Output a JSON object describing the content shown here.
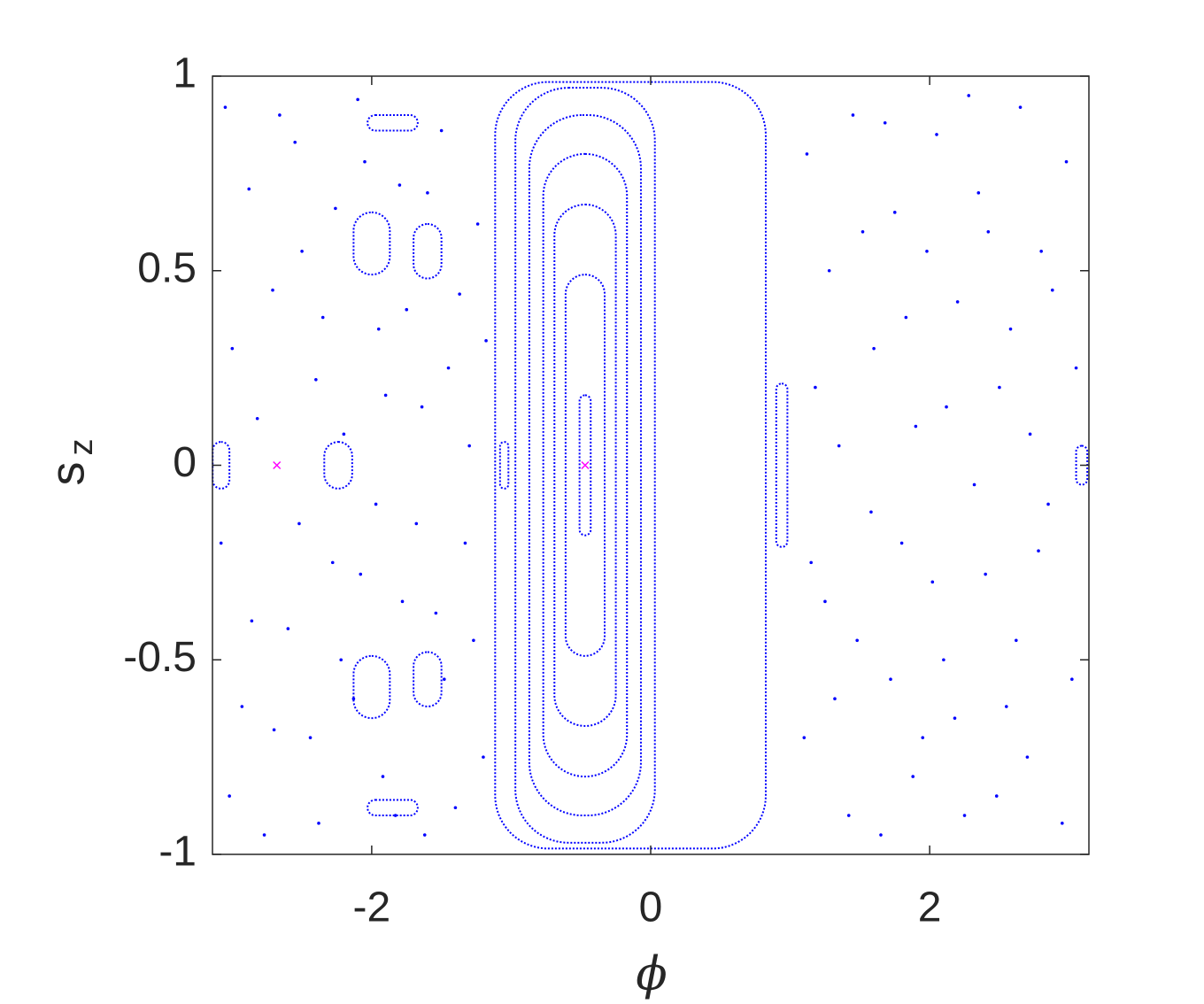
{
  "chart_data": {
    "type": "scatter",
    "xlabel": "ϕ",
    "ylabel": "s",
    "ylabel_subscript": "z",
    "xlim": [
      -3.1416,
      3.1416
    ],
    "ylim": [
      -1,
      1
    ],
    "xticks": [
      -2,
      0,
      2
    ],
    "yticks": [
      -1,
      -0.5,
      0,
      0.5,
      1
    ],
    "color": "#0000ff",
    "fixed_point_color": "#ff00ff",
    "points": {
      "x": [
        -3.05,
        -2.88,
        -2.71,
        -2.55,
        -2.4,
        -2.26,
        -2.1,
        -1.95,
        -1.8,
        -1.64,
        -1.5,
        -1.37,
        -1.24,
        -3.0,
        -2.82,
        -2.66,
        -2.5,
        -2.35,
        -2.2,
        -2.05,
        -1.9,
        -1.75,
        -1.6,
        -1.45,
        -1.3,
        -1.18,
        -3.02,
        -2.86,
        -2.7,
        -2.52,
        -2.38,
        -2.22,
        -2.08,
        -1.92,
        -1.78,
        -1.62,
        -1.48,
        -1.33,
        -1.2,
        -3.08,
        -2.93,
        -2.77,
        -2.6,
        -2.44,
        -2.28,
        -2.13,
        -1.97,
        -1.83,
        -1.68,
        -1.54,
        -1.4,
        -1.27,
        1.12,
        1.28,
        1.45,
        1.6,
        1.75,
        1.9,
        2.05,
        2.2,
        2.35,
        2.5,
        2.65,
        2.8,
        2.98,
        1.18,
        1.35,
        1.52,
        1.68,
        1.83,
        1.98,
        2.12,
        2.28,
        2.42,
        2.58,
        2.72,
        2.88,
        3.05,
        1.1,
        1.25,
        1.42,
        1.58,
        1.72,
        1.88,
        2.02,
        2.18,
        2.32,
        2.48,
        2.62,
        2.78,
        2.95,
        1.15,
        1.32,
        1.48,
        1.65,
        1.8,
        1.95,
        2.1,
        2.25,
        2.4,
        2.55,
        2.7,
        2.85,
        3.02
      ],
      "y": [
        0.92,
        0.71,
        0.45,
        0.83,
        0.22,
        0.66,
        0.94,
        0.35,
        0.72,
        0.15,
        0.86,
        0.44,
        0.62,
        0.3,
        0.12,
        0.9,
        0.55,
        0.38,
        0.08,
        0.78,
        0.18,
        0.4,
        0.7,
        0.25,
        0.05,
        0.32,
        -0.85,
        -0.4,
        -0.68,
        -0.15,
        -0.92,
        -0.5,
        -0.28,
        -0.8,
        -0.35,
        -0.95,
        -0.55,
        -0.2,
        -0.75,
        -0.2,
        -0.62,
        -0.95,
        -0.42,
        -0.7,
        -0.25,
        -0.6,
        -0.1,
        -0.9,
        -0.15,
        -0.38,
        -0.88,
        -0.45,
        0.8,
        0.5,
        0.9,
        0.3,
        0.65,
        0.1,
        0.85,
        0.42,
        0.7,
        0.2,
        0.92,
        0.55,
        0.78,
        0.2,
        0.05,
        0.6,
        0.88,
        0.38,
        0.55,
        0.15,
        0.95,
        0.6,
        0.35,
        0.08,
        0.45,
        0.25,
        -0.7,
        -0.35,
        -0.9,
        -0.12,
        -0.55,
        -0.8,
        -0.3,
        -0.65,
        -0.05,
        -0.85,
        -0.45,
        -0.22,
        -0.92,
        -0.25,
        -0.6,
        -0.45,
        -0.95,
        -0.2,
        -0.7,
        -0.5,
        -0.9,
        -0.28,
        -0.62,
        -0.75,
        -0.1,
        -0.55
      ]
    },
    "orbits": [
      {
        "cx": -0.47,
        "cy": 0,
        "rx": 0.04,
        "ry": 0.18
      },
      {
        "cx": -0.47,
        "cy": 0,
        "rx": 0.14,
        "ry": 0.49
      },
      {
        "cx": -0.47,
        "cy": 0,
        "rx": 0.22,
        "ry": 0.67
      },
      {
        "cx": -0.47,
        "cy": 0,
        "rx": 0.3,
        "ry": 0.8
      },
      {
        "cx": -0.47,
        "cy": 0,
        "rx": 0.4,
        "ry": 0.9
      },
      {
        "cx": -0.47,
        "cy": 0,
        "rx": 0.5,
        "ry": 0.97
      },
      {
        "cx": -0.145,
        "cy": 0,
        "rx": 0.97,
        "ry": 0.985
      },
      {
        "cx": 0.94,
        "cy": 0,
        "rx": 0.04,
        "ry": 0.21
      },
      {
        "cx": -1.05,
        "cy": 0,
        "rx": 0.03,
        "ry": 0.06
      },
      {
        "cx": -2.24,
        "cy": 0,
        "rx": 0.1,
        "ry": 0.06
      },
      {
        "cx": -3.08,
        "cy": 0,
        "rx": 0.06,
        "ry": 0.06
      },
      {
        "cx": 3.09,
        "cy": 0,
        "rx": 0.04,
        "ry": 0.05
      },
      {
        "cx": -2.0,
        "cy": 0.57,
        "rx": 0.13,
        "ry": 0.08
      },
      {
        "cx": -1.6,
        "cy": 0.55,
        "rx": 0.1,
        "ry": 0.07
      },
      {
        "cx": -2.0,
        "cy": -0.57,
        "rx": 0.13,
        "ry": 0.08
      },
      {
        "cx": -1.6,
        "cy": -0.55,
        "rx": 0.1,
        "ry": 0.07
      },
      {
        "cx": -1.85,
        "cy": 0.88,
        "rx": 0.18,
        "ry": 0.02
      },
      {
        "cx": -1.85,
        "cy": -0.88,
        "rx": 0.18,
        "ry": 0.02
      }
    ],
    "fixed_points": {
      "x": [
        -2.68,
        -0.47
      ],
      "y": [
        0,
        0
      ]
    }
  }
}
